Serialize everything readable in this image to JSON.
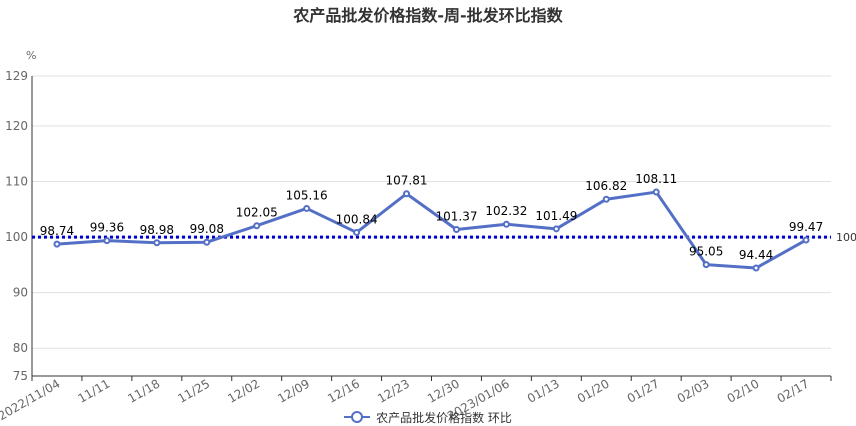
{
  "chart_data": {
    "type": "line",
    "title": "农产品批发价格指数-周-批发环比指数",
    "ylabel": "%",
    "ylim": [
      75,
      129
    ],
    "yticks": [
      75,
      80,
      90,
      100,
      110,
      120,
      129
    ],
    "categories": [
      "2022/11/04",
      "11/11",
      "11/18",
      "11/25",
      "12/02",
      "12/09",
      "12/16",
      "12/23",
      "12/30",
      "2023/01/06",
      "01/13",
      "01/20",
      "01/27",
      "02/03",
      "02/10",
      "02/17"
    ],
    "series": [
      {
        "name": "农产品批发价格指数  环比",
        "values": [
          98.74,
          99.36,
          98.98,
          99.08,
          102.05,
          105.16,
          100.84,
          107.81,
          101.37,
          102.32,
          101.49,
          106.82,
          108.11,
          95.05,
          94.44,
          99.47
        ],
        "color": "#5470c6"
      }
    ],
    "reference_line": {
      "value": 100,
      "label": "100",
      "color": "#0000cc",
      "style": "dotted"
    },
    "grid": true,
    "legend_position": "bottom"
  }
}
